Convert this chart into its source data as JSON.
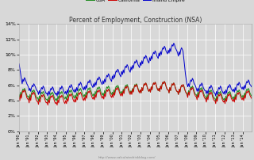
{
  "title": "Percent of Employment, Construction (NSA)",
  "url_text": "http://www.calculatedriskblog.com/",
  "legend_labels": [
    "USA",
    "California",
    "Inland Empire"
  ],
  "colors": {
    "usa": "#228B22",
    "california": "#CC0000",
    "inland_empire": "#0000CC"
  },
  "ylim": [
    0,
    14
  ],
  "yticks": [
    0,
    2,
    4,
    6,
    8,
    10,
    12,
    14
  ],
  "bg_color": "#d8d8d8",
  "grid_color": "#ffffff",
  "start_year": 1990,
  "usa_values": [
    4.8,
    4.3,
    5.1,
    4.6,
    5.2,
    5.5,
    5.3,
    5.6,
    5.4,
    5.0,
    4.7,
    4.5,
    4.6,
    4.1,
    4.8,
    4.4,
    5.0,
    5.3,
    5.1,
    5.4,
    5.2,
    4.8,
    4.5,
    4.3,
    4.4,
    3.9,
    4.6,
    4.2,
    4.8,
    5.1,
    4.9,
    5.2,
    5.0,
    4.6,
    4.3,
    4.1,
    4.2,
    3.8,
    4.5,
    4.1,
    4.7,
    5.0,
    4.8,
    5.1,
    4.9,
    4.5,
    4.2,
    4.0,
    4.3,
    3.9,
    4.6,
    4.2,
    4.8,
    5.1,
    4.9,
    5.2,
    5.0,
    4.6,
    4.4,
    4.2,
    4.5,
    4.1,
    4.8,
    4.4,
    5.0,
    5.3,
    5.1,
    5.4,
    5.2,
    4.8,
    4.5,
    4.3,
    4.7,
    4.3,
    5.0,
    4.6,
    5.2,
    5.5,
    5.3,
    5.6,
    5.4,
    5.0,
    4.7,
    4.5,
    4.8,
    4.4,
    5.1,
    4.7,
    5.3,
    5.6,
    5.4,
    5.7,
    5.5,
    5.1,
    4.8,
    4.6,
    4.9,
    4.5,
    5.2,
    4.8,
    5.4,
    5.7,
    5.5,
    5.8,
    5.6,
    5.2,
    4.9,
    4.7,
    5.0,
    4.6,
    5.3,
    4.9,
    5.5,
    5.8,
    5.6,
    5.9,
    5.7,
    5.3,
    5.0,
    4.8,
    5.1,
    4.7,
    5.4,
    5.0,
    5.6,
    5.9,
    5.7,
    6.0,
    5.8,
    5.4,
    5.1,
    4.9,
    5.2,
    4.8,
    5.5,
    5.1,
    5.7,
    6.0,
    5.8,
    6.1,
    5.9,
    5.5,
    5.2,
    5.0,
    5.3,
    4.9,
    5.6,
    5.2,
    5.8,
    6.1,
    5.9,
    6.2,
    6.0,
    5.6,
    5.3,
    5.1,
    5.4,
    5.0,
    5.7,
    5.3,
    5.9,
    6.2,
    6.0,
    6.3,
    6.1,
    5.7,
    5.4,
    5.2,
    5.5,
    5.1,
    5.8,
    5.4,
    6.0,
    6.3,
    6.1,
    6.4,
    6.2,
    5.8,
    5.5,
    5.3,
    5.6,
    5.2,
    5.9,
    5.5,
    6.1,
    6.4,
    6.2,
    6.5,
    6.3,
    5.9,
    5.6,
    5.4,
    5.4,
    5.0,
    5.7,
    5.3,
    5.9,
    6.2,
    6.0,
    6.3,
    6.1,
    5.7,
    5.4,
    5.2,
    5.2,
    4.8,
    5.5,
    5.1,
    5.7,
    6.0,
    5.8,
    6.1,
    5.9,
    5.5,
    5.2,
    5.0,
    5.0,
    4.6,
    5.3,
    4.9,
    5.5,
    5.8,
    5.6,
    5.9,
    5.7,
    5.3,
    5.0,
    4.8,
    4.8,
    4.4,
    5.1,
    4.7,
    5.3,
    5.6,
    5.4,
    5.7,
    5.5,
    5.1,
    4.8,
    4.6,
    4.5,
    4.1,
    4.8,
    4.4,
    5.0,
    5.3,
    5.1,
    5.4,
    5.2,
    4.8,
    4.5,
    4.3,
    4.3,
    3.9,
    4.6,
    4.2,
    4.8,
    5.1,
    4.9,
    5.2,
    5.0,
    4.6,
    4.3,
    4.1,
    4.3,
    3.9,
    4.6,
    4.2,
    4.8,
    5.1,
    4.9,
    5.2,
    5.0,
    4.6,
    4.4,
    4.2,
    4.5,
    4.1,
    4.8,
    4.4,
    5.0,
    5.3,
    5.1,
    5.4,
    5.2,
    4.8,
    4.6,
    4.4,
    4.7,
    4.3,
    5.0,
    4.6,
    5.2,
    5.5,
    5.3,
    5.6,
    5.4,
    5.0,
    4.8,
    4.6
  ],
  "ca_values": [
    4.5,
    4.0,
    4.8,
    4.3,
    5.0,
    5.3,
    5.1,
    5.4,
    5.2,
    4.8,
    4.4,
    4.2,
    4.2,
    3.7,
    4.5,
    4.0,
    4.7,
    5.0,
    4.8,
    5.1,
    4.9,
    4.5,
    4.1,
    3.9,
    3.9,
    3.5,
    4.2,
    3.8,
    4.4,
    4.7,
    4.5,
    4.8,
    4.6,
    4.2,
    3.9,
    3.7,
    3.8,
    3.4,
    4.1,
    3.7,
    4.3,
    4.6,
    4.4,
    4.7,
    4.5,
    4.1,
    3.8,
    3.6,
    3.8,
    3.4,
    4.1,
    3.7,
    4.3,
    4.6,
    4.4,
    4.7,
    4.5,
    4.1,
    3.8,
    3.6,
    4.0,
    3.6,
    4.3,
    3.9,
    4.5,
    4.8,
    4.6,
    4.9,
    4.7,
    4.3,
    4.0,
    3.8,
    4.2,
    3.8,
    4.5,
    4.1,
    4.7,
    5.0,
    4.8,
    5.1,
    4.9,
    4.5,
    4.2,
    4.0,
    4.4,
    4.0,
    4.7,
    4.3,
    4.9,
    5.2,
    5.0,
    5.3,
    5.1,
    4.7,
    4.4,
    4.2,
    4.5,
    4.1,
    4.8,
    4.4,
    5.0,
    5.3,
    5.1,
    5.4,
    5.2,
    4.8,
    4.5,
    4.3,
    4.6,
    4.2,
    4.9,
    4.5,
    5.1,
    5.4,
    5.2,
    5.5,
    5.3,
    4.9,
    4.6,
    4.4,
    4.8,
    4.4,
    5.1,
    4.7,
    5.3,
    5.6,
    5.4,
    5.7,
    5.5,
    5.1,
    4.8,
    4.6,
    5.0,
    4.6,
    5.3,
    4.9,
    5.5,
    5.8,
    5.6,
    5.9,
    5.7,
    5.3,
    5.0,
    4.8,
    5.2,
    4.8,
    5.5,
    5.1,
    5.7,
    6.0,
    5.8,
    6.1,
    5.9,
    5.5,
    5.2,
    5.0,
    5.4,
    5.0,
    5.7,
    5.3,
    5.9,
    6.2,
    6.0,
    6.3,
    6.1,
    5.7,
    5.4,
    5.2,
    5.5,
    5.1,
    5.8,
    5.4,
    6.0,
    6.3,
    6.1,
    6.4,
    6.2,
    5.8,
    5.5,
    5.3,
    5.6,
    5.2,
    5.9,
    5.5,
    6.1,
    6.4,
    6.2,
    6.5,
    6.3,
    5.9,
    5.6,
    5.4,
    5.4,
    5.0,
    5.7,
    5.3,
    5.9,
    6.2,
    6.0,
    6.3,
    6.1,
    5.7,
    5.4,
    5.2,
    5.2,
    4.8,
    5.5,
    5.1,
    5.7,
    6.0,
    5.8,
    6.1,
    5.9,
    5.5,
    5.2,
    5.0,
    4.8,
    4.4,
    5.1,
    4.7,
    5.3,
    5.6,
    5.4,
    5.7,
    5.5,
    5.1,
    4.8,
    4.6,
    4.5,
    4.1,
    4.8,
    4.4,
    5.0,
    5.3,
    5.1,
    5.4,
    5.2,
    4.8,
    4.5,
    4.3,
    4.2,
    3.8,
    4.5,
    4.1,
    4.7,
    5.0,
    4.8,
    5.1,
    4.9,
    4.5,
    4.2,
    4.0,
    4.0,
    3.6,
    4.3,
    3.9,
    4.5,
    4.8,
    4.6,
    4.9,
    4.7,
    4.3,
    4.0,
    3.8,
    4.0,
    3.6,
    4.3,
    3.9,
    4.5,
    4.8,
    4.6,
    4.9,
    4.7,
    4.3,
    4.1,
    3.9,
    4.2,
    3.8,
    4.5,
    4.1,
    4.7,
    5.0,
    4.8,
    5.1,
    4.9,
    4.5,
    4.3,
    4.1,
    4.4,
    4.0,
    4.7,
    4.3,
    4.9,
    5.2,
    5.0,
    5.3,
    5.1,
    4.7,
    4.5,
    4.3
  ],
  "ie_values": [
    8.8,
    8.2,
    7.5,
    6.8,
    6.2,
    6.8,
    6.5,
    7.0,
    6.8,
    6.5,
    6.2,
    6.0,
    5.8,
    5.3,
    5.6,
    5.2,
    5.7,
    6.0,
    5.8,
    6.2,
    6.0,
    5.8,
    5.5,
    5.3,
    5.2,
    4.8,
    5.3,
    4.9,
    5.4,
    5.7,
    5.5,
    5.9,
    5.7,
    5.4,
    5.1,
    4.9,
    5.0,
    4.6,
    5.2,
    4.8,
    5.3,
    5.6,
    5.4,
    5.8,
    5.6,
    5.2,
    5.0,
    4.8,
    5.0,
    4.6,
    5.2,
    4.8,
    5.4,
    5.7,
    5.5,
    5.9,
    5.7,
    5.3,
    5.1,
    4.9,
    5.2,
    4.8,
    5.4,
    5.0,
    5.6,
    5.9,
    5.7,
    6.1,
    5.9,
    5.5,
    5.3,
    5.1,
    5.5,
    5.1,
    5.7,
    5.3,
    5.9,
    6.2,
    6.0,
    6.4,
    6.2,
    5.8,
    5.6,
    5.4,
    5.8,
    5.4,
    6.0,
    5.6,
    6.2,
    6.5,
    6.3,
    6.7,
    6.5,
    6.1,
    5.9,
    5.7,
    6.2,
    5.8,
    6.4,
    6.0,
    6.6,
    6.9,
    6.7,
    7.1,
    6.9,
    6.5,
    6.3,
    6.1,
    6.6,
    6.2,
    6.8,
    6.4,
    7.0,
    7.3,
    7.1,
    7.5,
    7.3,
    6.9,
    6.7,
    6.5,
    7.2,
    6.8,
    7.4,
    7.0,
    7.6,
    7.9,
    7.7,
    8.1,
    7.9,
    7.5,
    7.3,
    7.1,
    7.8,
    7.4,
    8.0,
    7.6,
    8.2,
    8.5,
    8.3,
    8.7,
    8.5,
    8.1,
    7.9,
    7.7,
    8.4,
    8.0,
    8.6,
    8.2,
    8.8,
    9.1,
    8.9,
    9.3,
    9.1,
    8.7,
    8.5,
    8.3,
    9.0,
    8.6,
    9.2,
    8.8,
    9.4,
    9.7,
    9.5,
    9.9,
    9.7,
    9.3,
    9.1,
    8.9,
    9.6,
    9.2,
    9.8,
    9.4,
    10.0,
    10.3,
    10.1,
    10.5,
    10.3,
    9.9,
    9.7,
    9.5,
    10.2,
    9.8,
    10.4,
    10.0,
    10.6,
    10.9,
    10.7,
    11.1,
    10.9,
    10.5,
    10.3,
    10.1,
    10.6,
    10.2,
    10.8,
    10.4,
    11.0,
    11.3,
    11.1,
    11.5,
    11.3,
    10.9,
    10.7,
    10.5,
    10.2,
    9.8,
    10.4,
    10.0,
    10.6,
    10.9,
    10.7,
    10.4,
    9.5,
    8.5,
    7.5,
    6.8,
    6.2,
    5.8,
    6.2,
    5.8,
    6.4,
    6.7,
    6.5,
    6.9,
    6.7,
    6.3,
    6.1,
    5.9,
    5.6,
    5.2,
    5.6,
    5.2,
    5.8,
    6.1,
    5.9,
    6.3,
    6.1,
    5.7,
    5.5,
    5.3,
    5.3,
    4.9,
    5.3,
    4.9,
    5.5,
    5.8,
    5.6,
    6.0,
    5.8,
    5.4,
    5.2,
    5.0,
    5.0,
    4.6,
    5.2,
    4.8,
    5.4,
    5.7,
    5.5,
    5.9,
    5.7,
    5.3,
    5.1,
    4.9,
    5.2,
    4.8,
    5.4,
    5.0,
    5.6,
    5.9,
    5.7,
    6.1,
    5.9,
    5.5,
    5.4,
    5.2,
    5.5,
    5.1,
    5.7,
    5.3,
    5.9,
    6.2,
    6.0,
    6.4,
    6.2,
    5.8,
    5.7,
    5.5,
    5.8,
    5.4,
    6.0,
    5.6,
    6.2,
    6.5,
    6.3,
    6.7,
    6.5,
    6.1,
    6.0,
    5.8
  ],
  "xtick_every_year": [
    1990,
    1991,
    1992,
    1993,
    1994,
    1995,
    1996,
    1997,
    1998,
    1999,
    2000,
    2001,
    2002,
    2003,
    2004,
    2005,
    2006,
    2007,
    2008,
    2009,
    2010,
    2011,
    2012,
    2013,
    2014
  ]
}
